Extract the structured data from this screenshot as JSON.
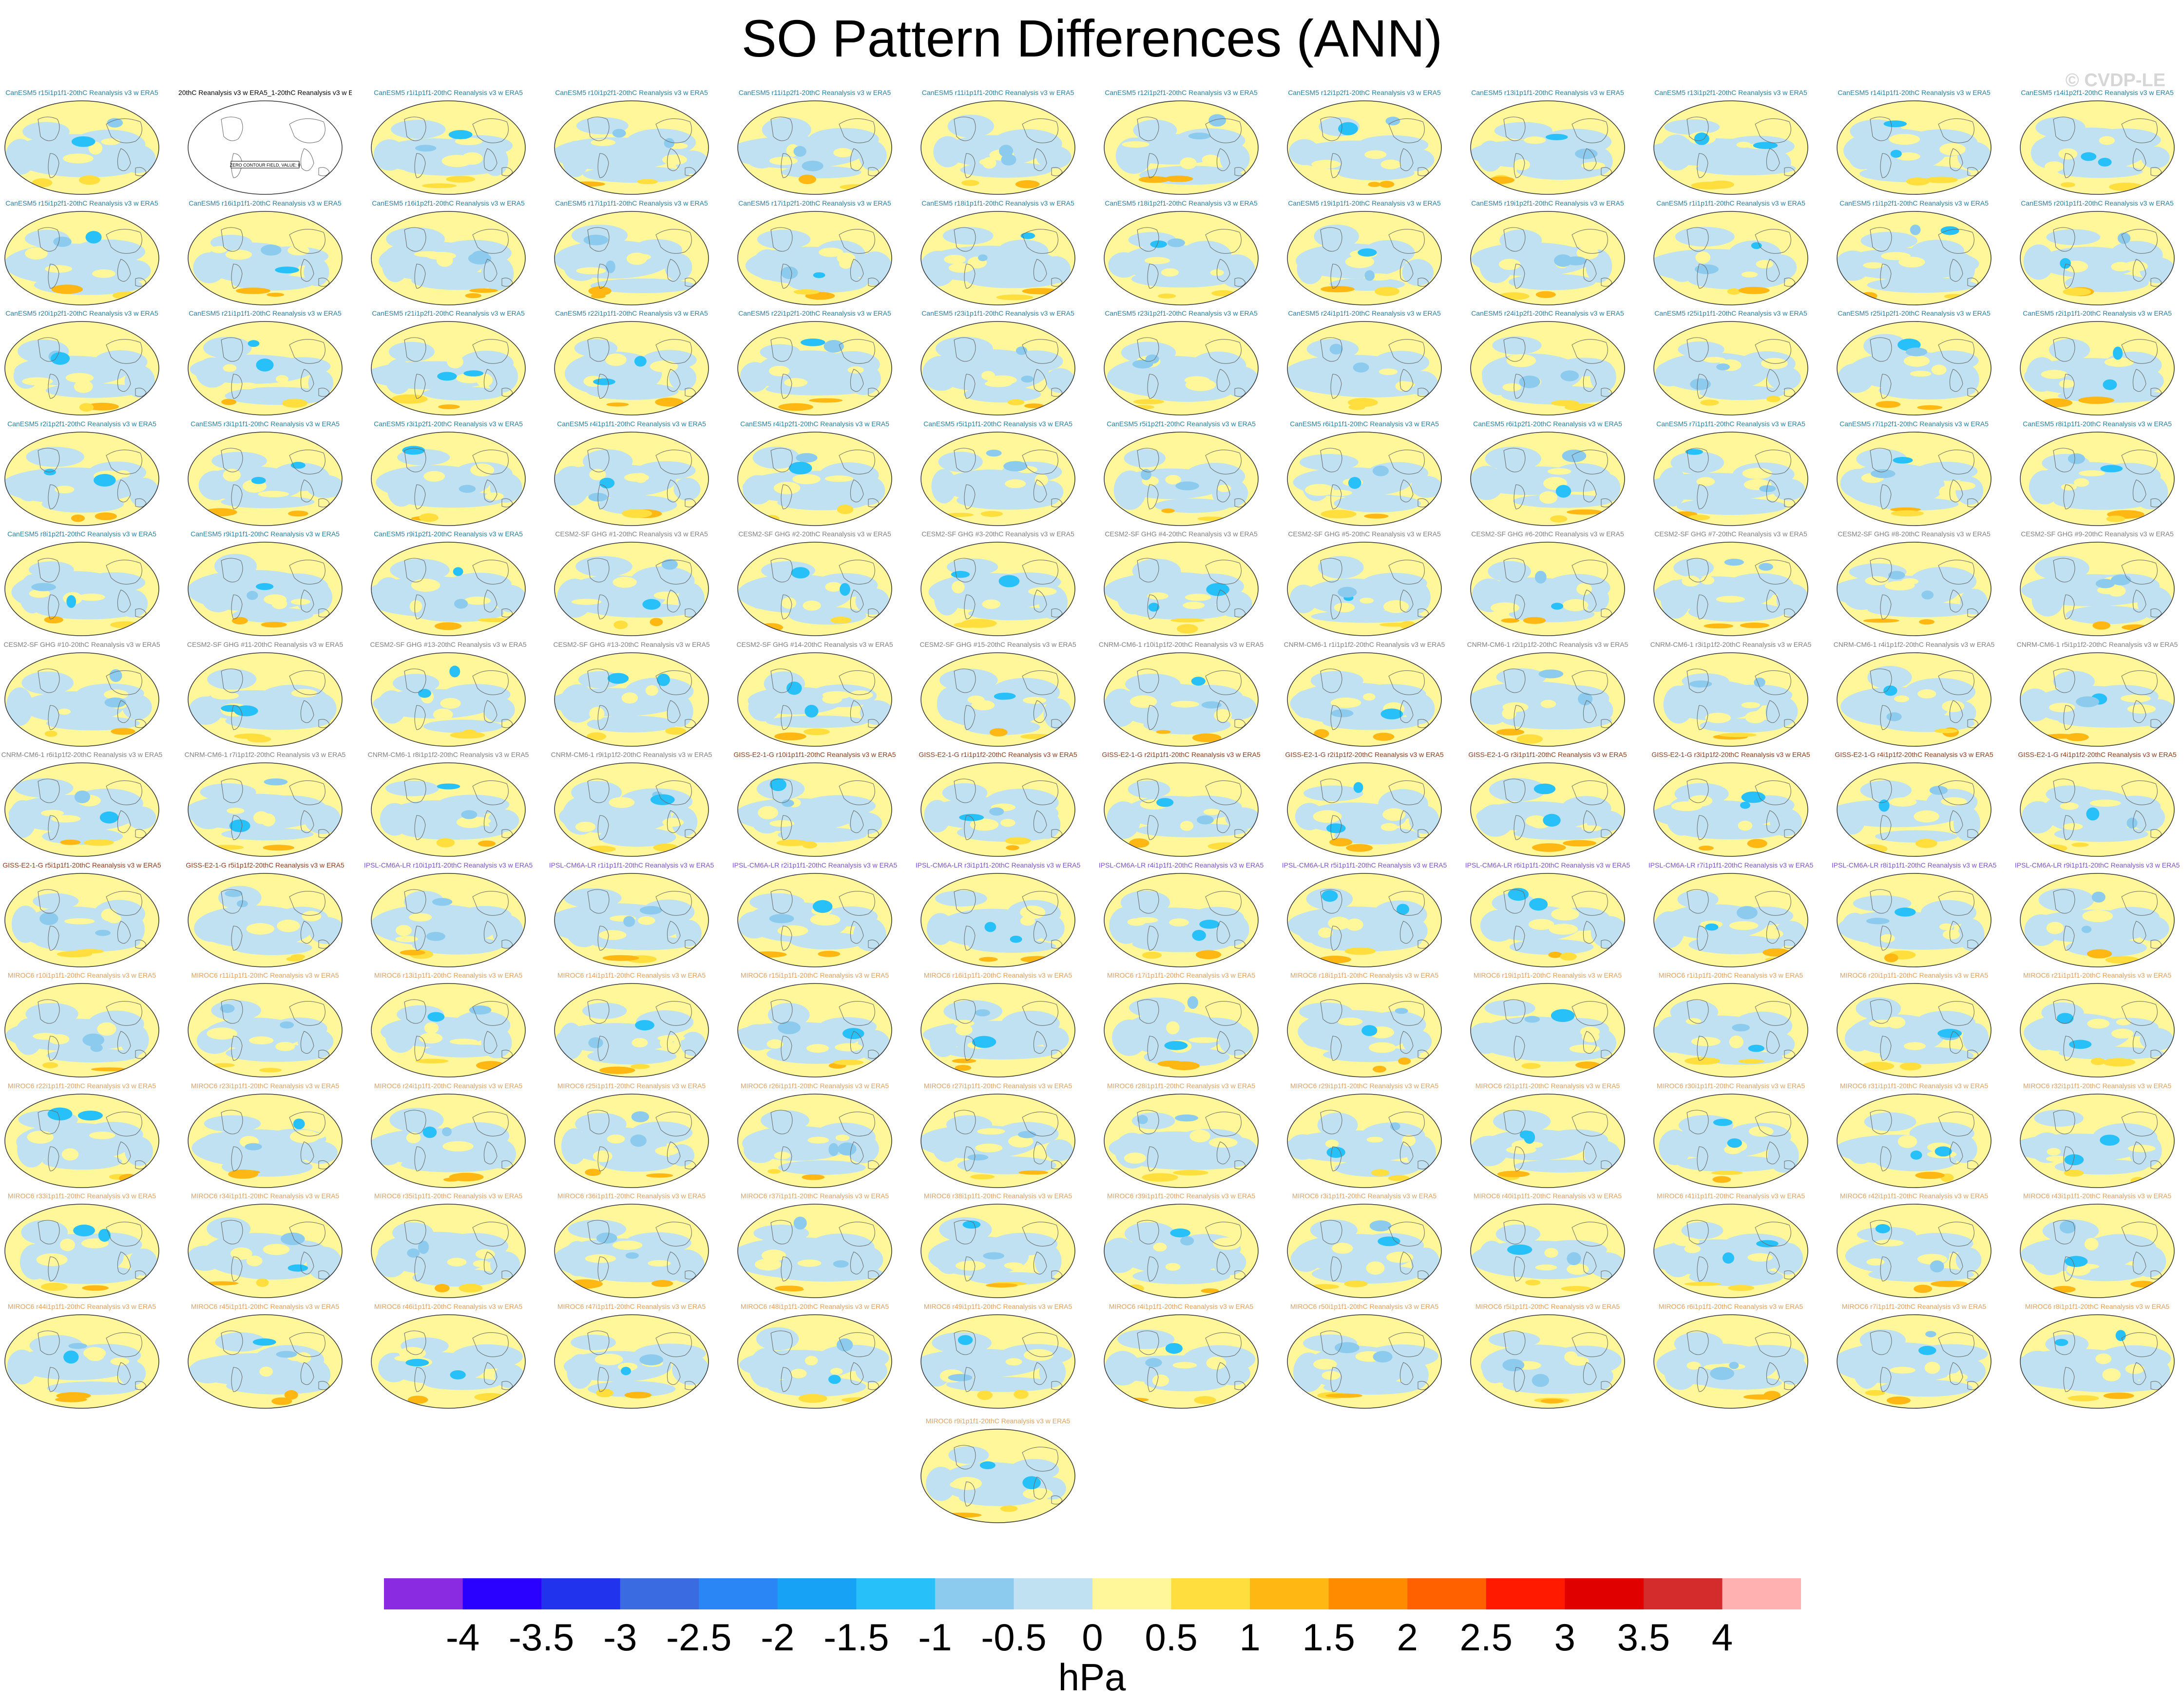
{
  "title": "SO Pattern Differences (ANN)",
  "watermark": "© CVDP-LE",
  "units": "hPa",
  "colorbar": {
    "colors": [
      "#8a2be2",
      "#2a00ff",
      "#2233ee",
      "#3b6be0",
      "#2a86f5",
      "#18a2f5",
      "#28c0f8",
      "#8ccbee",
      "#bfe1f1",
      "#fff799",
      "#ffde3d",
      "#ffb714",
      "#ff8c00",
      "#ff6100",
      "#ff1a00",
      "#e00000",
      "#d42c2c",
      "#ffb0b0"
    ],
    "labels": [
      "-4",
      "-3.5",
      "-3",
      "-2.5",
      "-2",
      "-1.5",
      "-1",
      "-0.5",
      "0",
      "0.5",
      "1",
      "1.5",
      "2",
      "2.5",
      "3",
      "3.5",
      "4"
    ]
  },
  "chart_data": {
    "type": "heatmap",
    "title": "SO Pattern Differences (ANN)",
    "colorbar_unit": "hPa",
    "colorbar_range": [
      -4,
      4
    ],
    "colorbar_ticks": [
      -4,
      -3.5,
      -3,
      -2.5,
      -2,
      -1.5,
      -1,
      -0.5,
      0,
      0.5,
      1,
      1.5,
      2,
      2.5,
      3,
      3.5,
      4
    ],
    "panels": [
      {
        "title": "20thC Reanalysis v3 w ERA5_1-20thC Reanalysis v3 w ERA5",
        "note": "ZERO CONTOUR FIELD, VALUE: 0",
        "color": "#000000"
      },
      {
        "title": "CanESM5 r1i1p1f1-20thC Reanalysis v3 w ERA5",
        "color": "#2a7fa0"
      },
      {
        "title": "CanESM5 r10i1p2f1-20thC Reanalysis v3 w ERA5",
        "color": "#2a7fa0"
      },
      {
        "title": "CanESM5 r11i1p2f1-20thC Reanalysis v3 w ERA5",
        "color": "#2a7fa0"
      },
      {
        "title": "CanESM5 r11i1p1f1-20thC Reanalysis v3 w ERA5",
        "color": "#2a7fa0"
      },
      {
        "title": "CanESM5 r12i1p2f1-20thC Reanalysis v3 w ERA5",
        "color": "#2a7fa0"
      },
      {
        "title": "CanESM5 r12i1p2f1-20thC Reanalysis v3 w ERA5",
        "color": "#2a7fa0"
      },
      {
        "title": "CanESM5 r13i1p1f1-20thC Reanalysis v3 w ERA5",
        "color": "#2a7fa0"
      },
      {
        "title": "CanESM5 r13i1p2f1-20thC Reanalysis v3 w ERA5",
        "color": "#2a7fa0"
      },
      {
        "title": "CanESM5 r14i1p1f1-20thC Reanalysis v3 w ERA5",
        "color": "#2a7fa0"
      },
      {
        "title": "CanESM5 r14i1p2f1-20thC Reanalysis v3 w ERA5",
        "color": "#2a7fa0"
      },
      {
        "title": "CanESM5 r15i1p1f1-20thC Reanalysis v3 w ERA5",
        "color": "#2a7fa0"
      },
      {
        "title": "CanESM5 r15i1p2f1-20thC Reanalysis v3 w ERA5",
        "color": "#2a7fa0"
      },
      {
        "title": "CanESM5 r16i1p1f1-20thC Reanalysis v3 w ERA5",
        "color": "#2a7fa0"
      },
      {
        "title": "CanESM5 r16i1p2f1-20thC Reanalysis v3 w ERA5",
        "color": "#2a7fa0"
      },
      {
        "title": "CanESM5 r17i1p1f1-20thC Reanalysis v3 w ERA5",
        "color": "#2a7fa0"
      },
      {
        "title": "CanESM5 r17i1p2f1-20thC Reanalysis v3 w ERA5",
        "color": "#2a7fa0"
      },
      {
        "title": "CanESM5 r18i1p1f1-20thC Reanalysis v3 w ERA5",
        "color": "#2a7fa0"
      },
      {
        "title": "CanESM5 r18i1p2f1-20thC Reanalysis v3 w ERA5",
        "color": "#2a7fa0"
      },
      {
        "title": "CanESM5 r19i1p1f1-20thC Reanalysis v3 w ERA5",
        "color": "#2a7fa0"
      },
      {
        "title": "CanESM5 r19i1p2f1-20thC Reanalysis v3 w ERA5",
        "color": "#2a7fa0"
      },
      {
        "title": "CanESM5 r1i1p1f1-20thC Reanalysis v3 w ERA5",
        "color": "#2a7fa0"
      },
      {
        "title": "CanESM5 r1i1p2f1-20thC Reanalysis v3 w ERA5",
        "color": "#2a7fa0"
      },
      {
        "title": "CanESM5 r20i1p1f1-20thC Reanalysis v3 w ERA5",
        "color": "#2a7fa0"
      },
      {
        "title": "CanESM5 r20i1p2f1-20thC Reanalysis v3 w ERA5",
        "color": "#2a7fa0"
      },
      {
        "title": "CanESM5 r21i1p1f1-20thC Reanalysis v3 w ERA5",
        "color": "#2a7fa0"
      },
      {
        "title": "CanESM5 r21i1p2f1-20thC Reanalysis v3 w ERA5",
        "color": "#2a7fa0"
      },
      {
        "title": "CanESM5 r22i1p1f1-20thC Reanalysis v3 w ERA5",
        "color": "#2a7fa0"
      },
      {
        "title": "CanESM5 r22i1p2f1-20thC Reanalysis v3 w ERA5",
        "color": "#2a7fa0"
      },
      {
        "title": "CanESM5 r23i1p1f1-20thC Reanalysis v3 w ERA5",
        "color": "#2a7fa0"
      },
      {
        "title": "CanESM5 r23i1p2f1-20thC Reanalysis v3 w ERA5",
        "color": "#2a7fa0"
      },
      {
        "title": "CanESM5 r24i1p1f1-20thC Reanalysis v3 w ERA5",
        "color": "#2a7fa0"
      },
      {
        "title": "CanESM5 r24i1p2f1-20thC Reanalysis v3 w ERA5",
        "color": "#2a7fa0"
      },
      {
        "title": "CanESM5 r25i1p1f1-20thC Reanalysis v3 w ERA5",
        "color": "#2a7fa0"
      },
      {
        "title": "CanESM5 r25i1p2f1-20thC Reanalysis v3 w ERA5",
        "color": "#2a7fa0"
      },
      {
        "title": "CanESM5 r2i1p1f1-20thC Reanalysis v3 w ERA5",
        "color": "#2a7fa0"
      },
      {
        "title": "CanESM5 r2i1p2f1-20thC Reanalysis v3 w ERA5",
        "color": "#2a7fa0"
      },
      {
        "title": "CanESM5 r3i1p1f1-20thC Reanalysis v3 w ERA5",
        "color": "#2a7fa0"
      },
      {
        "title": "CanESM5 r3i1p2f1-20thC Reanalysis v3 w ERA5",
        "color": "#2a7fa0"
      },
      {
        "title": "CanESM5 r4i1p1f1-20thC Reanalysis v3 w ERA5",
        "color": "#2a7fa0"
      },
      {
        "title": "CanESM5 r4i1p2f1-20thC Reanalysis v3 w ERA5",
        "color": "#2a7fa0"
      },
      {
        "title": "CanESM5 r5i1p1f1-20thC Reanalysis v3 w ERA5",
        "color": "#2a7fa0"
      },
      {
        "title": "CanESM5 r5i1p2f1-20thC Reanalysis v3 w ERA5",
        "color": "#2a7fa0"
      },
      {
        "title": "CanESM5 r6i1p1f1-20thC Reanalysis v3 w ERA5",
        "color": "#2a7fa0"
      },
      {
        "title": "CanESM5 r6i1p2f1-20thC Reanalysis v3 w ERA5",
        "color": "#2a7fa0"
      },
      {
        "title": "CanESM5 r7i1p1f1-20thC Reanalysis v3 w ERA5",
        "color": "#2a7fa0"
      },
      {
        "title": "CanESM5 r7i1p2f1-20thC Reanalysis v3 w ERA5",
        "color": "#2a7fa0"
      },
      {
        "title": "CanESM5 r8i1p1f1-20thC Reanalysis v3 w ERA5",
        "color": "#2a7fa0"
      },
      {
        "title": "CanESM5 r8i1p2f1-20thC Reanalysis v3 w ERA5",
        "color": "#2a7fa0"
      },
      {
        "title": "CanESM5 r9i1p1f1-20thC Reanalysis v3 w ERA5",
        "color": "#2a7fa0"
      },
      {
        "title": "CanESM5 r9i1p2f1-20thC Reanalysis v3 w ERA5",
        "color": "#2a7fa0"
      },
      {
        "title": "CESM2-SF GHG #1-20thC Reanalysis v3 w ERA5",
        "color": "#808080"
      },
      {
        "title": "CESM2-SF GHG #2-20thC Reanalysis v3 w ERA5",
        "color": "#808080"
      },
      {
        "title": "CESM2-SF GHG #3-20thC Reanalysis v3 w ERA5",
        "color": "#808080"
      },
      {
        "title": "CESM2-SF GHG #4-20thC Reanalysis v3 w ERA5",
        "color": "#808080"
      },
      {
        "title": "CESM2-SF GHG #5-20thC Reanalysis v3 w ERA5",
        "color": "#808080"
      },
      {
        "title": "CESM2-SF GHG #6-20thC Reanalysis v3 w ERA5",
        "color": "#808080"
      },
      {
        "title": "CESM2-SF GHG #7-20thC Reanalysis v3 w ERA5",
        "color": "#808080"
      },
      {
        "title": "CESM2-SF GHG #8-20thC Reanalysis v3 w ERA5",
        "color": "#808080"
      },
      {
        "title": "CESM2-SF GHG #9-20thC Reanalysis v3 w ERA5",
        "color": "#808080"
      },
      {
        "title": "CESM2-SF GHG #10-20thC Reanalysis v3 w ERA5",
        "color": "#808080"
      },
      {
        "title": "CESM2-SF GHG #11-20thC Reanalysis v3 w ERA5",
        "color": "#808080"
      },
      {
        "title": "CESM2-SF GHG #13-20thC Reanalysis v3 w ERA5",
        "color": "#808080"
      },
      {
        "title": "CESM2-SF GHG #13-20thC Reanalysis v3 w ERA5",
        "color": "#808080"
      },
      {
        "title": "CESM2-SF GHG #14-20thC Reanalysis v3 w ERA5",
        "color": "#808080"
      },
      {
        "title": "CESM2-SF GHG #15-20thC Reanalysis v3 w ERA5",
        "color": "#808080"
      },
      {
        "title": "CNRM-CM6-1 r10i1p1f2-20thC Reanalysis v3 w ERA5",
        "color": "#808080"
      },
      {
        "title": "CNRM-CM6-1 r1i1p1f2-20thC Reanalysis v3 w ERA5",
        "color": "#808080"
      },
      {
        "title": "CNRM-CM6-1 r2i1p1f2-20thC Reanalysis v3 w ERA5",
        "color": "#808080"
      },
      {
        "title": "CNRM-CM6-1 r3i1p1f2-20thC Reanalysis v3 w ERA5",
        "color": "#808080"
      },
      {
        "title": "CNRM-CM6-1 r4i1p1f2-20thC Reanalysis v3 w ERA5",
        "color": "#808080"
      },
      {
        "title": "CNRM-CM6-1 r5i1p1f2-20thC Reanalysis v3 w ERA5",
        "color": "#808080"
      },
      {
        "title": "CNRM-CM6-1 r6i1p1f2-20thC Reanalysis v3 w ERA5",
        "color": "#808080"
      },
      {
        "title": "CNRM-CM6-1 r7i1p1f2-20thC Reanalysis v3 w ERA5",
        "color": "#808080"
      },
      {
        "title": "CNRM-CM6-1 r8i1p1f2-20thC Reanalysis v3 w ERA5",
        "color": "#808080"
      },
      {
        "title": "CNRM-CM6-1 r9i1p1f2-20thC Reanalysis v3 w ERA5",
        "color": "#808080"
      },
      {
        "title": "GISS-E2-1-G r10i1p1f1-20thC Reanalysis v3 w ERA5",
        "color": "#8b3a1a"
      },
      {
        "title": "GISS-E2-1-G r1i1p1f2-20thC Reanalysis v3 w ERA5",
        "color": "#8b3a1a"
      },
      {
        "title": "GISS-E2-1-G r2i1p1f1-20thC Reanalysis v3 w ERA5",
        "color": "#8b3a1a"
      },
      {
        "title": "GISS-E2-1-G r2i1p1f2-20thC Reanalysis v3 w ERA5",
        "color": "#8b3a1a"
      },
      {
        "title": "GISS-E2-1-G r3i1p1f1-20thC Reanalysis v3 w ERA5",
        "color": "#8b3a1a"
      },
      {
        "title": "GISS-E2-1-G r3i1p1f2-20thC Reanalysis v3 w ERA5",
        "color": "#8b3a1a"
      },
      {
        "title": "GISS-E2-1-G r4i1p1f2-20thC Reanalysis v3 w ERA5",
        "color": "#8b3a1a"
      },
      {
        "title": "GISS-E2-1-G r4i1p1f2-20thC Reanalysis v3 w ERA5",
        "color": "#8b3a1a"
      },
      {
        "title": "GISS-E2-1-G r5i1p1f1-20thC Reanalysis v3 w ERA5",
        "color": "#8b3a1a"
      },
      {
        "title": "GISS-E2-1-G r5i1p1f2-20thC Reanalysis v3 w ERA5",
        "color": "#8b3a1a"
      },
      {
        "title": "IPSL-CM6A-LR r10i1p1f1-20thC Reanalysis v3 w ERA5",
        "color": "#7b52c8"
      },
      {
        "title": "IPSL-CM6A-LR r1i1p1f1-20thC Reanalysis v3 w ERA5",
        "color": "#7b52c8"
      },
      {
        "title": "IPSL-CM6A-LR r2i1p1f1-20thC Reanalysis v3 w ERA5",
        "color": "#7b52c8"
      },
      {
        "title": "IPSL-CM6A-LR r3i1p1f1-20thC Reanalysis v3 w ERA5",
        "color": "#7b52c8"
      },
      {
        "title": "IPSL-CM6A-LR r4i1p1f1-20thC Reanalysis v3 w ERA5",
        "color": "#7b52c8"
      },
      {
        "title": "IPSL-CM6A-LR r5i1p1f1-20thC Reanalysis v3 w ERA5",
        "color": "#7b52c8"
      },
      {
        "title": "IPSL-CM6A-LR r6i1p1f1-20thC Reanalysis v3 w ERA5",
        "color": "#7b52c8"
      },
      {
        "title": "IPSL-CM6A-LR r7i1p1f1-20thC Reanalysis v3 w ERA5",
        "color": "#7b52c8"
      },
      {
        "title": "IPSL-CM6A-LR r8i1p1f1-20thC Reanalysis v3 w ERA5",
        "color": "#7b52c8"
      },
      {
        "title": "IPSL-CM6A-LR r9i1p1f1-20thC Reanalysis v3 w ERA5",
        "color": "#7b52c8"
      },
      {
        "title": "MIROC6 r10i1p1f1-20thC Reanalysis v3 w ERA5",
        "color": "#e0a060"
      },
      {
        "title": "MIROC6 r11i1p1f1-20thC Reanalysis v3 w ERA5",
        "color": "#e0a060"
      },
      {
        "title": "MIROC6 r13i1p1f1-20thC Reanalysis v3 w ERA5",
        "color": "#e0a060"
      },
      {
        "title": "MIROC6 r14i1p1f1-20thC Reanalysis v3 w ERA5",
        "color": "#e0a060"
      },
      {
        "title": "MIROC6 r15i1p1f1-20thC Reanalysis v3 w ERA5",
        "color": "#e0a060"
      },
      {
        "title": "MIROC6 r16i1p1f1-20thC Reanalysis v3 w ERA5",
        "color": "#e0a060"
      },
      {
        "title": "MIROC6 r17i1p1f1-20thC Reanalysis v3 w ERA5",
        "color": "#e0a060"
      },
      {
        "title": "MIROC6 r18i1p1f1-20thC Reanalysis v3 w ERA5",
        "color": "#e0a060"
      },
      {
        "title": "MIROC6 r19i1p1f1-20thC Reanalysis v3 w ERA5",
        "color": "#e0a060"
      },
      {
        "title": "MIROC6 r1i1p1f1-20thC Reanalysis v3 w ERA5",
        "color": "#e0a060"
      },
      {
        "title": "MIROC6 r20i1p1f1-20thC Reanalysis v3 w ERA5",
        "color": "#e0a060"
      },
      {
        "title": "MIROC6 r21i1p1f1-20thC Reanalysis v3 w ERA5",
        "color": "#e0a060"
      },
      {
        "title": "MIROC6 r22i1p1f1-20thC Reanalysis v3 w ERA5",
        "color": "#e0a060"
      },
      {
        "title": "MIROC6 r23i1p1f1-20thC Reanalysis v3 w ERA5",
        "color": "#e0a060"
      },
      {
        "title": "MIROC6 r24i1p1f1-20thC Reanalysis v3 w ERA5",
        "color": "#e0a060"
      },
      {
        "title": "MIROC6 r25i1p1f1-20thC Reanalysis v3 w ERA5",
        "color": "#e0a060"
      },
      {
        "title": "MIROC6 r26i1p1f1-20thC Reanalysis v3 w ERA5",
        "color": "#e0a060"
      },
      {
        "title": "MIROC6 r27i1p1f1-20thC Reanalysis v3 w ERA5",
        "color": "#e0a060"
      },
      {
        "title": "MIROC6 r28i1p1f1-20thC Reanalysis v3 w ERA5",
        "color": "#e0a060"
      },
      {
        "title": "MIROC6 r29i1p1f1-20thC Reanalysis v3 w ERA5",
        "color": "#e0a060"
      },
      {
        "title": "MIROC6 r2i1p1f1-20thC Reanalysis v3 w ERA5",
        "color": "#e0a060"
      },
      {
        "title": "MIROC6 r30i1p1f1-20thC Reanalysis v3 w ERA5",
        "color": "#e0a060"
      },
      {
        "title": "MIROC6 r31i1p1f1-20thC Reanalysis v3 w ERA5",
        "color": "#e0a060"
      },
      {
        "title": "MIROC6 r32i1p1f1-20thC Reanalysis v3 w ERA5",
        "color": "#e0a060"
      },
      {
        "title": "MIROC6 r33i1p1f1-20thC Reanalysis v3 w ERA5",
        "color": "#e0a060"
      },
      {
        "title": "MIROC6 r34i1p1f1-20thC Reanalysis v3 w ERA5",
        "color": "#e0a060"
      },
      {
        "title": "MIROC6 r35i1p1f1-20thC Reanalysis v3 w ERA5",
        "color": "#e0a060"
      },
      {
        "title": "MIROC6 r36i1p1f1-20thC Reanalysis v3 w ERA5",
        "color": "#e0a060"
      },
      {
        "title": "MIROC6 r37i1p1f1-20thC Reanalysis v3 w ERA5",
        "color": "#e0a060"
      },
      {
        "title": "MIROC6 r38i1p1f1-20thC Reanalysis v3 w ERA5",
        "color": "#e0a060"
      },
      {
        "title": "MIROC6 r39i1p1f1-20thC Reanalysis v3 w ERA5",
        "color": "#e0a060"
      },
      {
        "title": "MIROC6 r3i1p1f1-20thC Reanalysis v3 w ERA5",
        "color": "#e0a060"
      },
      {
        "title": "MIROC6 r40i1p1f1-20thC Reanalysis v3 w ERA5",
        "color": "#e0a060"
      },
      {
        "title": "MIROC6 r41i1p1f1-20thC Reanalysis v3 w ERA5",
        "color": "#e0a060"
      },
      {
        "title": "MIROC6 r42i1p1f1-20thC Reanalysis v3 w ERA5",
        "color": "#e0a060"
      },
      {
        "title": "MIROC6 r43i1p1f1-20thC Reanalysis v3 w ERA5",
        "color": "#e0a060"
      },
      {
        "title": "MIROC6 r44i1p1f1-20thC Reanalysis v3 w ERA5",
        "color": "#e0a060"
      },
      {
        "title": "MIROC6 r45i1p1f1-20thC Reanalysis v3 w ERA5",
        "color": "#e0a060"
      },
      {
        "title": "MIROC6 r46i1p1f1-20thC Reanalysis v3 w ERA5",
        "color": "#e0a060"
      },
      {
        "title": "MIROC6 r47i1p1f1-20thC Reanalysis v3 w ERA5",
        "color": "#e0a060"
      },
      {
        "title": "MIROC6 r48i1p1f1-20thC Reanalysis v3 w ERA5",
        "color": "#e0a060"
      },
      {
        "title": "MIROC6 r49i1p1f1-20thC Reanalysis v3 w ERA5",
        "color": "#e0a060"
      },
      {
        "title": "MIROC6 r4i1p1f1-20thC Reanalysis v3 w ERA5",
        "color": "#e0a060"
      },
      {
        "title": "MIROC6 r50i1p1f1-20thC Reanalysis v3 w ERA5",
        "color": "#e0a060"
      },
      {
        "title": "MIROC6 r5i1p1f1-20thC Reanalysis v3 w ERA5",
        "color": "#e0a060"
      },
      {
        "title": "MIROC6 r6i1p1f1-20thC Reanalysis v3 w ERA5",
        "color": "#e0a060"
      },
      {
        "title": "MIROC6 r7i1p1f1-20thC Reanalysis v3 w ERA5",
        "color": "#e0a060"
      },
      {
        "title": "MIROC6 r8i1p1f1-20thC Reanalysis v3 w ERA5",
        "color": "#e0a060"
      },
      {
        "title": "MIROC6 r9i1p1f1-20thC Reanalysis v3 w ERA5",
        "color": "#e0a060"
      }
    ]
  }
}
